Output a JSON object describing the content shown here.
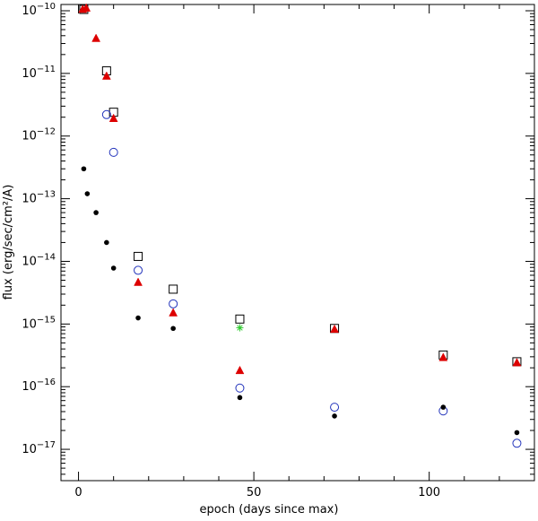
{
  "chart_data": {
    "type": "scatter",
    "xlabel": "epoch (days since max)",
    "ylabel": "flux (erg/sec/cm²/A)",
    "xlim": [
      -5,
      130
    ],
    "ylim_log10": [
      -17.5,
      -9.9
    ],
    "yscale": "log",
    "grid": false,
    "x_ticks": [
      0,
      50,
      100
    ],
    "y_ticks": [
      {
        "exp": -10,
        "label": "10−10"
      },
      {
        "exp": -11,
        "label": "10−11"
      },
      {
        "exp": -12,
        "label": "10−12"
      },
      {
        "exp": -13,
        "label": "10−13"
      },
      {
        "exp": -14,
        "label": "10−14"
      },
      {
        "exp": -15,
        "label": "10−15"
      },
      {
        "exp": -16,
        "label": "10−16"
      },
      {
        "exp": -17,
        "label": "10−17"
      }
    ],
    "series": [
      {
        "marker": "open-square",
        "color": "#000000",
        "points": [
          [
            1.5,
            1.05e-10
          ],
          [
            8,
            1.1e-11
          ],
          [
            10,
            2.4e-12
          ],
          [
            17,
            1.2e-14
          ],
          [
            27,
            3.6e-15
          ],
          [
            46,
            1.2e-15
          ],
          [
            73,
            8.5e-16
          ],
          [
            104,
            3.2e-16
          ],
          [
            125,
            2.5e-16
          ]
        ]
      },
      {
        "marker": "filled-triangle",
        "color": "#dd0000",
        "points": [
          [
            1.2,
            1.05e-10
          ],
          [
            2.2,
            1.1e-10
          ],
          [
            5,
            3.6e-11
          ],
          [
            8,
            9e-12
          ],
          [
            10,
            1.9e-12
          ],
          [
            17,
            4.6e-15
          ],
          [
            27,
            1.5e-15
          ],
          [
            46,
            1.8e-16
          ],
          [
            73,
            8.2e-16
          ],
          [
            104,
            2.9e-16
          ],
          [
            125,
            2.4e-16
          ]
        ]
      },
      {
        "marker": "open-circle",
        "color": "#2233bb",
        "points": [
          [
            8,
            2.2e-12
          ],
          [
            10,
            5.5e-13
          ],
          [
            17,
            7.2e-15
          ],
          [
            27,
            2.1e-15
          ],
          [
            46,
            9.5e-17
          ],
          [
            73,
            4.7e-17
          ],
          [
            104,
            4.1e-17
          ],
          [
            125,
            1.25e-17
          ]
        ]
      },
      {
        "marker": "filled-circle",
        "color": "#000000",
        "points": [
          [
            1.5,
            3e-13
          ],
          [
            2.5,
            1.2e-13
          ],
          [
            5,
            6e-14
          ],
          [
            8,
            2e-14
          ],
          [
            10,
            7.8e-15
          ],
          [
            17,
            1.25e-15
          ],
          [
            27,
            8.5e-16
          ],
          [
            46,
            6.7e-17
          ],
          [
            73,
            3.4e-17
          ],
          [
            104,
            4.7e-17
          ],
          [
            125,
            1.85e-17
          ]
        ]
      },
      {
        "marker": "asterisk",
        "color": "#33cc33",
        "points": [
          [
            46,
            8.7e-16
          ]
        ]
      }
    ]
  }
}
